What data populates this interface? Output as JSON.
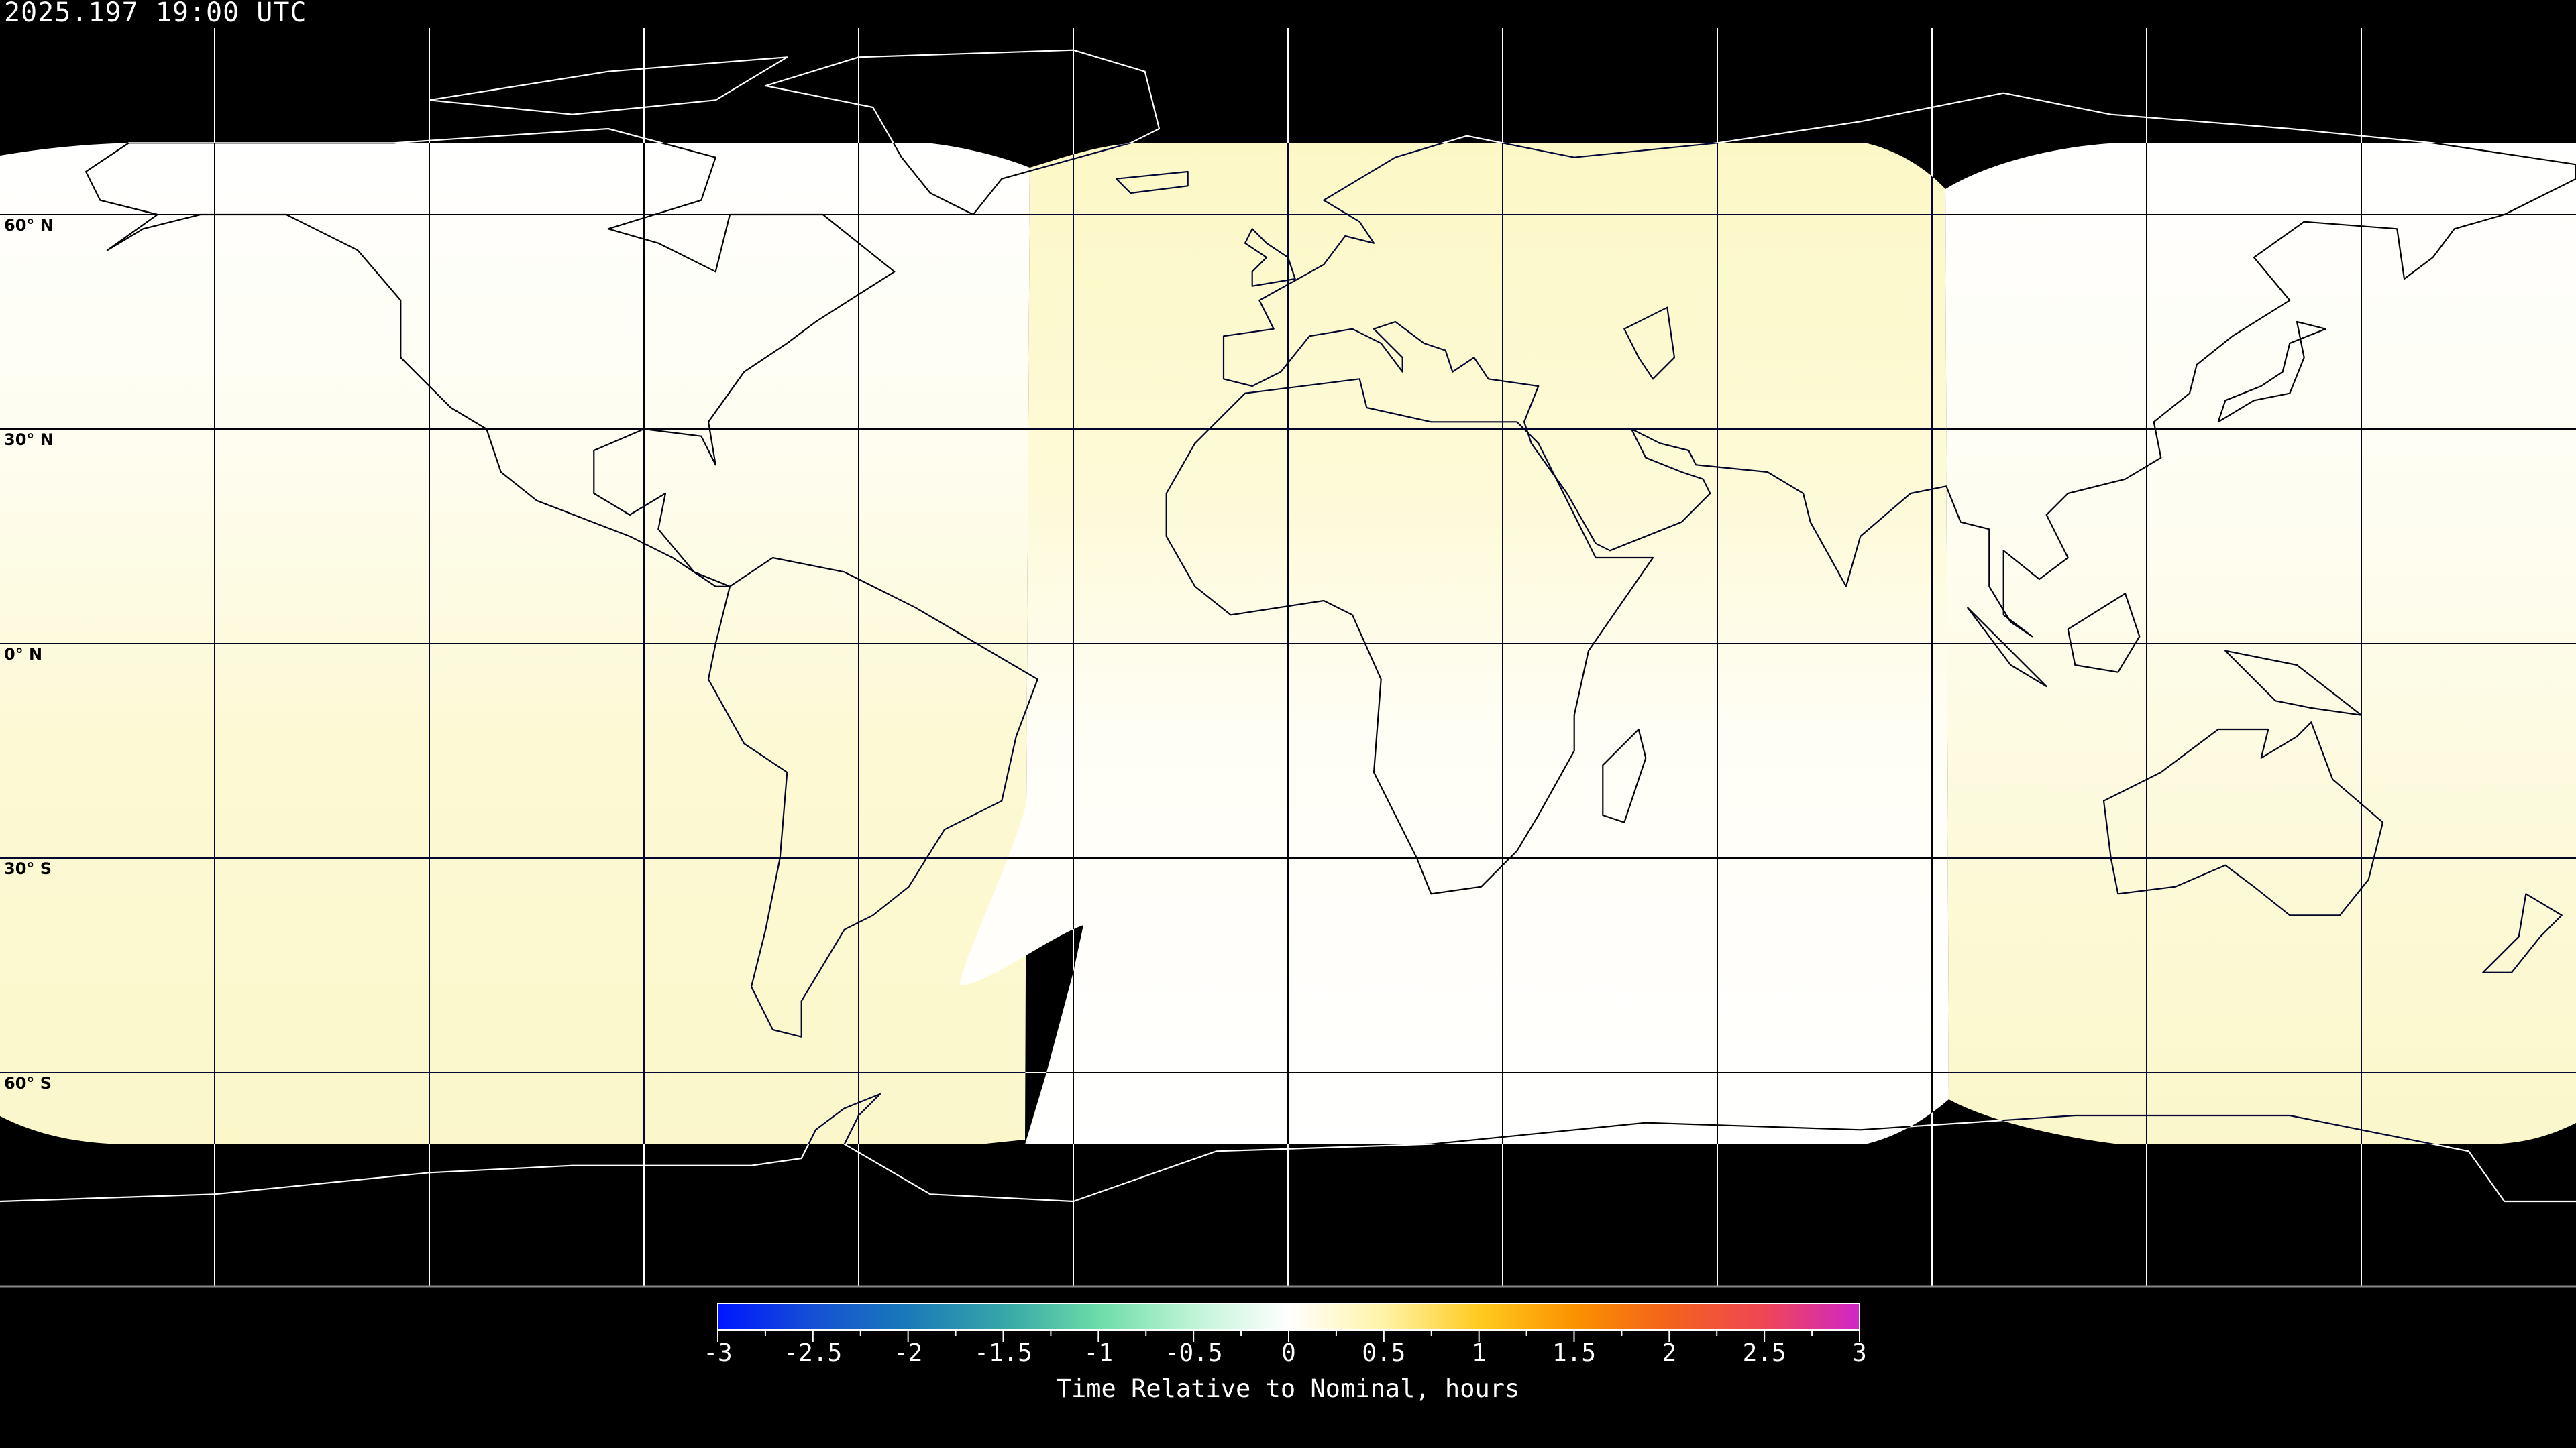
{
  "header": {
    "timestamp": "2025.197 19:00 UTC"
  },
  "map": {
    "projection": "equirectangular",
    "lon_range": [
      -180,
      180
    ],
    "lat_range": [
      -90,
      90
    ],
    "grid_spacing_deg": 30,
    "lat_labels": [
      "60° N",
      "30° N",
      "0° N",
      "30° S",
      "60° S"
    ],
    "colors": {
      "background": "#000000",
      "pale_yellow": "#fbf8cc",
      "white": "#ffffff",
      "coastline": "#000000",
      "no_data": "#000000"
    }
  },
  "colorbar": {
    "title": "Time Relative to Nominal, hours",
    "min": -3,
    "max": 3,
    "tick_labels": [
      "-3",
      "-2.5",
      "-2",
      "-1.5",
      "-1",
      "-0.5",
      "0",
      "0.5",
      "1",
      "1.5",
      "2",
      "2.5",
      "3"
    ],
    "color_stops": [
      "#0015ff",
      "#1450d4",
      "#1a7ab8",
      "#36a6a8",
      "#6cdca8",
      "#bff4d6",
      "#ffffff",
      "#fff3a6",
      "#ffcb1f",
      "#fb9200",
      "#f2621c",
      "#ef4655",
      "#d026c8"
    ]
  }
}
